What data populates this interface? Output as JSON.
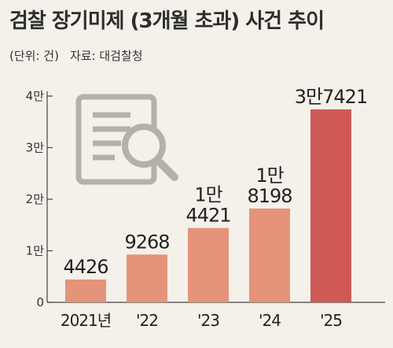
{
  "title": "검찰 장기미제 (3개월 초과) 사건 추이",
  "unit_note": "(단위: 건)",
  "source_note": "자료: 대검찰청",
  "colors": {
    "background": "#f4f1ea",
    "bar": "#e5937a",
    "bar_highlight": "#cf5a55",
    "axis": "#444444",
    "icon": "#b4b0aa"
  },
  "icon": "document-search-icon",
  "chart_data": {
    "type": "bar",
    "title": "검찰 장기미제 (3개월 초과) 사건 추이",
    "xlabel": "",
    "ylabel": "",
    "unit": "건",
    "categories": [
      "2021년",
      "'22",
      "'23",
      "'24",
      "'25"
    ],
    "values": [
      4426,
      9268,
      14421,
      18198,
      37421
    ],
    "value_labels": [
      [
        "4426"
      ],
      [
        "9268"
      ],
      [
        "1만",
        "4421"
      ],
      [
        "1만",
        "8198"
      ],
      [
        "3만7421"
      ]
    ],
    "highlight_index": 4,
    "ylim": [
      0,
      40000
    ],
    "yticks": [
      0,
      10000,
      20000,
      30000,
      40000
    ],
    "ytick_labels": [
      "0",
      "1만",
      "2만",
      "3만",
      "4만"
    ],
    "grid": false,
    "legend": "none"
  }
}
